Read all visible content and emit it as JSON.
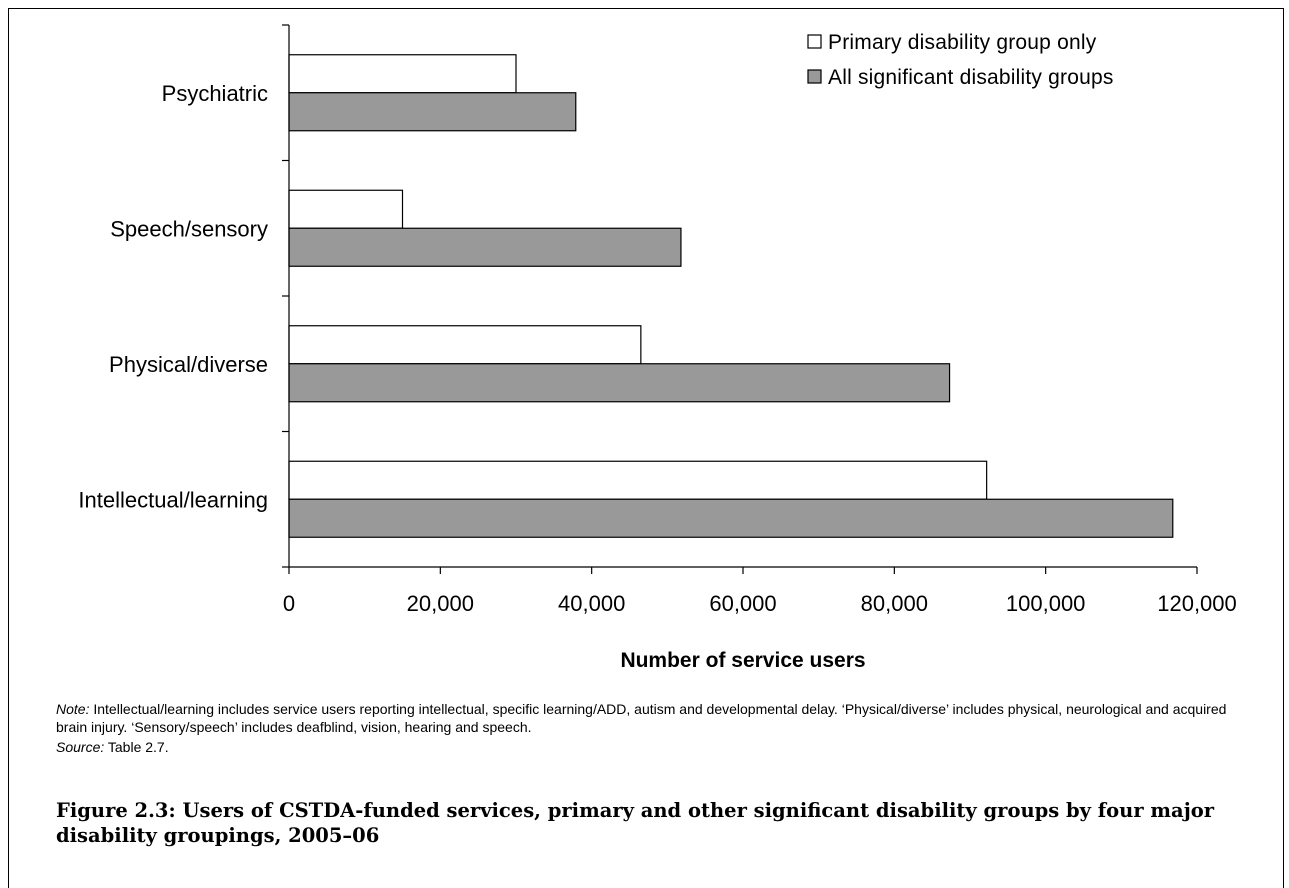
{
  "chart_data": {
    "type": "bar",
    "orientation": "horizontal",
    "categories": [
      "Psychiatric",
      "Speech/sensory",
      "Physical/diverse",
      "Intellectual/learning"
    ],
    "series": [
      {
        "name": "Primary disability group only",
        "color": "#ffffff",
        "values": [
          30000,
          15000,
          46500,
          92200
        ]
      },
      {
        "name": "All significant disability groups",
        "color": "#999999",
        "values": [
          37900,
          51800,
          87300,
          116800
        ]
      }
    ],
    "xlabel": "Number of service users",
    "ylabel": "",
    "xlim": [
      0,
      120000
    ],
    "xticks": [
      0,
      20000,
      40000,
      60000,
      80000,
      100000,
      120000
    ],
    "xtick_labels": [
      "0",
      "20,000",
      "40,000",
      "60,000",
      "80,000",
      "100,000",
      "120,000"
    ],
    "grid": false,
    "legend_position": "top-right"
  },
  "notes": {
    "note_label": "Note:",
    "note_text": " Intellectual/learning includes service users reporting intellectual, specific learning/ADD, autism and developmental delay. ‘Physical/diverse’ includes physical, neurological and acquired brain injury. ‘Sensory/speech’ includes deafblind, vision, hearing and speech.",
    "source_label": "Source:",
    "source_text": " Table 2.7."
  },
  "caption": {
    "figure_label": "Figure 2.3:",
    "text": " Users of CSTDA-funded services, primary and other significant disability groups by four major disability groupings, 2005–06"
  }
}
